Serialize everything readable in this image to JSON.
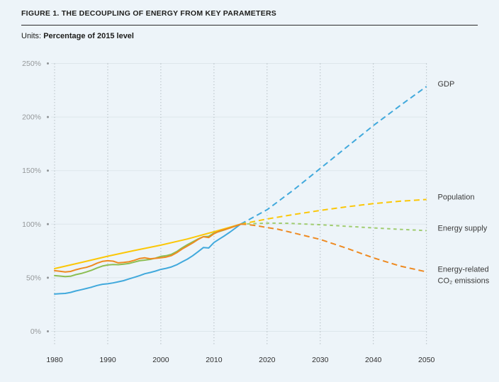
{
  "header": {
    "title": "FIGURE 1. THE DECOUPLING OF ENERGY FROM KEY PARAMETERS",
    "units_label": "Units:",
    "units_value": "Percentage of 2015 level"
  },
  "chart_data": {
    "type": "line",
    "title": "FIGURE 1. THE DECOUPLING OF ENERGY FROM KEY PARAMETERS",
    "subtitle": "Units: Percentage of 2015 level",
    "xlabel": "",
    "ylabel": "",
    "xlim": [
      1980,
      2050
    ],
    "ylim": [
      0,
      250
    ],
    "x_ticks": [
      1980,
      1990,
      2000,
      2010,
      2020,
      2030,
      2040,
      2050
    ],
    "x_tick_labels": [
      "1980",
      "1990",
      "2000",
      "2010",
      "2020",
      "2030",
      "2040",
      "2050"
    ],
    "y_ticks": [
      0,
      50,
      100,
      150,
      200,
      250
    ],
    "y_tick_labels": [
      "0%",
      "50%",
      "100%",
      "150%",
      "200%",
      "250%"
    ],
    "grid": {
      "vertical": "dotted",
      "horizontal": "solid"
    },
    "legend_position": "right-edge-labels",
    "colors": {
      "background": "#edf4f9",
      "grid_horizontal": "#dde6eb",
      "grid_vertical": "#a9b2b8",
      "y_tick_text": "#95989a",
      "x_tick_text": "#2f2f30",
      "series_label_text": "#3a3a3a",
      "title_text": "#1d1d1b"
    },
    "series": [
      {
        "id": "gdp",
        "name": "GDP",
        "label_lines": [
          "GDP"
        ],
        "color": "#41a9dc",
        "projection_color": "#41a9dc",
        "dash": "8 5",
        "history": [
          [
            1980,
            34.8
          ],
          [
            1981,
            35.1
          ],
          [
            1982,
            35.4
          ],
          [
            1983,
            36.3
          ],
          [
            1984,
            37.7
          ],
          [
            1985,
            38.8
          ],
          [
            1986,
            40.0
          ],
          [
            1987,
            41.3
          ],
          [
            1988,
            42.8
          ],
          [
            1989,
            43.9
          ],
          [
            1990,
            44.4
          ],
          [
            1991,
            45.2
          ],
          [
            1992,
            46.2
          ],
          [
            1993,
            47.3
          ],
          [
            1994,
            48.9
          ],
          [
            1995,
            50.4
          ],
          [
            1996,
            52.0
          ],
          [
            1997,
            53.8
          ],
          [
            1998,
            54.9
          ],
          [
            1999,
            56.2
          ],
          [
            2000,
            57.8
          ],
          [
            2001,
            58.8
          ],
          [
            2002,
            60.1
          ],
          [
            2003,
            62.1
          ],
          [
            2004,
            64.8
          ],
          [
            2005,
            67.4
          ],
          [
            2006,
            70.6
          ],
          [
            2007,
            74.3
          ],
          [
            2008,
            78.2
          ],
          [
            2009,
            77.8
          ],
          [
            2010,
            82.9
          ],
          [
            2011,
            86.1
          ],
          [
            2012,
            89.2
          ],
          [
            2013,
            92.6
          ],
          [
            2014,
            96.2
          ],
          [
            2015,
            100
          ]
        ],
        "projection": [
          [
            2015,
            100
          ],
          [
            2020,
            113.5
          ],
          [
            2025,
            132
          ],
          [
            2030,
            152
          ],
          [
            2035,
            172
          ],
          [
            2040,
            192
          ],
          [
            2045,
            210.5
          ],
          [
            2050,
            228.5
          ]
        ]
      },
      {
        "id": "population",
        "name": "Population",
        "label_lines": [
          "Population"
        ],
        "color": "#fbc707",
        "projection_color": "#fbc707",
        "dash": "8 5",
        "history": [
          [
            1980,
            58.5
          ],
          [
            1985,
            64.2
          ],
          [
            1990,
            70.1
          ],
          [
            1995,
            75.4
          ],
          [
            2000,
            80.4
          ],
          [
            2005,
            86.2
          ],
          [
            2010,
            92.9
          ],
          [
            2015,
            100
          ]
        ],
        "projection": [
          [
            2015,
            100
          ],
          [
            2020,
            104.8
          ],
          [
            2025,
            109.0
          ],
          [
            2030,
            112.8
          ],
          [
            2035,
            116.2
          ],
          [
            2040,
            119.2
          ],
          [
            2045,
            121.4
          ],
          [
            2050,
            123
          ]
        ]
      },
      {
        "id": "energy-supply",
        "name": "Energy supply",
        "label_lines": [
          "Energy supply"
        ],
        "color": "#8cbe53",
        "projection_color": "#a0cc70",
        "dash": "4.5 4.5",
        "history": [
          [
            1980,
            52.0
          ],
          [
            1981,
            51.6
          ],
          [
            1982,
            51.1
          ],
          [
            1983,
            51.4
          ],
          [
            1984,
            52.9
          ],
          [
            1985,
            54.0
          ],
          [
            1986,
            55.4
          ],
          [
            1987,
            57.1
          ],
          [
            1988,
            59.1
          ],
          [
            1989,
            60.9
          ],
          [
            1990,
            61.9
          ],
          [
            1991,
            62.3
          ],
          [
            1992,
            62.2
          ],
          [
            1993,
            62.7
          ],
          [
            1994,
            63.3
          ],
          [
            1995,
            64.6
          ],
          [
            1996,
            65.9
          ],
          [
            1997,
            66.5
          ],
          [
            1998,
            67.1
          ],
          [
            1999,
            68.3
          ],
          [
            2000,
            69.9
          ],
          [
            2001,
            70.6
          ],
          [
            2002,
            71.9
          ],
          [
            2003,
            74.5
          ],
          [
            2004,
            77.9
          ],
          [
            2005,
            80.8
          ],
          [
            2006,
            83.5
          ],
          [
            2007,
            86.2
          ],
          [
            2008,
            88.3
          ],
          [
            2009,
            88.6
          ],
          [
            2010,
            91.7
          ],
          [
            2011,
            93.1
          ],
          [
            2012,
            94.7
          ],
          [
            2013,
            96.5
          ],
          [
            2014,
            98.2
          ],
          [
            2015,
            100
          ]
        ],
        "projection": [
          [
            2015,
            100
          ],
          [
            2020,
            101.0
          ],
          [
            2024,
            100.8
          ],
          [
            2030,
            99.5
          ],
          [
            2035,
            98.0
          ],
          [
            2040,
            96.5
          ],
          [
            2045,
            95.2
          ],
          [
            2050,
            94.0
          ]
        ]
      },
      {
        "id": "co2-emissions",
        "name": "Energy-related CO₂ emissions",
        "label_lines": [
          "Energy-related",
          "CO₂ emissions"
        ],
        "color": "#ee8a21",
        "projection_color": "#ee8a21",
        "dash": "8 5",
        "history": [
          [
            1980,
            56.6
          ],
          [
            1981,
            56.1
          ],
          [
            1982,
            55.4
          ],
          [
            1983,
            55.9
          ],
          [
            1984,
            57.5
          ],
          [
            1985,
            58.7
          ],
          [
            1986,
            59.7
          ],
          [
            1987,
            61.4
          ],
          [
            1988,
            63.6
          ],
          [
            1989,
            65.3
          ],
          [
            1990,
            65.9
          ],
          [
            1991,
            65.5
          ],
          [
            1992,
            63.9
          ],
          [
            1993,
            64.3
          ],
          [
            1994,
            64.9
          ],
          [
            1995,
            66.3
          ],
          [
            1996,
            67.9
          ],
          [
            1997,
            68.6
          ],
          [
            1998,
            67.7
          ],
          [
            1999,
            68.1
          ],
          [
            2000,
            68.6
          ],
          [
            2001,
            69.3
          ],
          [
            2002,
            70.7
          ],
          [
            2003,
            73.4
          ],
          [
            2004,
            76.8
          ],
          [
            2005,
            79.6
          ],
          [
            2006,
            82.5
          ],
          [
            2007,
            85.7
          ],
          [
            2008,
            88.3
          ],
          [
            2009,
            87.5
          ],
          [
            2010,
            91.1
          ],
          [
            2011,
            93.5
          ],
          [
            2012,
            94.9
          ],
          [
            2013,
            96.4
          ],
          [
            2014,
            98.2
          ],
          [
            2015,
            100
          ]
        ],
        "projection": [
          [
            2015,
            100
          ],
          [
            2016,
            99.8
          ],
          [
            2018,
            98.6
          ],
          [
            2020,
            96.8
          ],
          [
            2022,
            95.3
          ],
          [
            2025,
            91.8
          ],
          [
            2030,
            85.8
          ],
          [
            2035,
            77.5
          ],
          [
            2040,
            68.6
          ],
          [
            2045,
            61.0
          ],
          [
            2050,
            55.5
          ]
        ]
      }
    ]
  }
}
